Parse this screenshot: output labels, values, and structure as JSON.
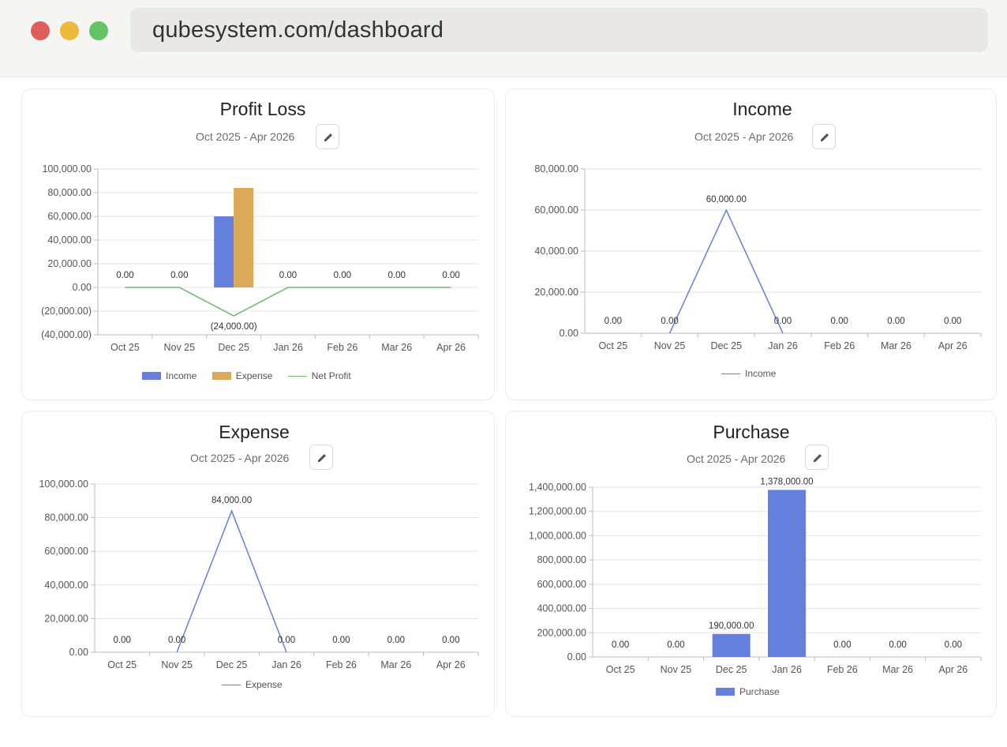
{
  "browser": {
    "url": "qubesystem.com/dashboard"
  },
  "colors": {
    "income": "#6580dc",
    "expense": "#d9a957",
    "net_profit": "#6cb86c",
    "purchase": "#6580dc"
  },
  "cards": {
    "profit_loss": {
      "title": "Profit Loss",
      "period": "Oct 2025 - Apr 2026",
      "edit_icon": "pencil-icon",
      "legend": [
        "Income",
        "Expense",
        "Net Profit"
      ]
    },
    "income": {
      "title": "Income",
      "period": "Oct 2025 - Apr 2026",
      "edit_icon": "pencil-icon",
      "legend": [
        "Income"
      ]
    },
    "expense": {
      "title": "Expense",
      "period": "Oct 2025 - Apr 2026",
      "edit_icon": "pencil-icon",
      "legend": [
        "Expense"
      ]
    },
    "purchase": {
      "title": "Purchase",
      "period": "Oct 2025 - Apr 2026",
      "edit_icon": "pencil-icon",
      "legend": [
        "Purchase"
      ]
    }
  },
  "chart_data": [
    {
      "id": "profit_loss",
      "type": "bar",
      "categories": [
        "Oct 25",
        "Nov 25",
        "Dec 25",
        "Jan 26",
        "Feb 26",
        "Mar 26",
        "Apr 26"
      ],
      "series": [
        {
          "name": "Income",
          "type": "bar",
          "values": [
            0,
            0,
            60000,
            0,
            0,
            0,
            0
          ]
        },
        {
          "name": "Expense",
          "type": "bar",
          "values": [
            0,
            0,
            84000,
            0,
            0,
            0,
            0
          ]
        },
        {
          "name": "Net Profit",
          "type": "line",
          "values": [
            0,
            0,
            -24000,
            0,
            0,
            0,
            0
          ]
        }
      ],
      "data_labels": [
        "0.00",
        "0.00",
        "(24,000.00)",
        "0.00",
        "0.00",
        "0.00",
        "0.00"
      ],
      "yticks": [
        "100,000.00",
        "80,000.00",
        "60,000.00",
        "40,000.00",
        "20,000.00",
        "0.00",
        "(20,000.00)",
        "(40,000.00)"
      ],
      "ylim": [
        -40000,
        100000
      ],
      "grid": true,
      "legend_position": "bottom"
    },
    {
      "id": "income",
      "type": "line",
      "categories": [
        "Oct 25",
        "Nov 25",
        "Dec 25",
        "Jan 26",
        "Feb 26",
        "Mar 26",
        "Apr 26"
      ],
      "series": [
        {
          "name": "Income",
          "values": [
            0,
            0,
            60000,
            0,
            0,
            0,
            0
          ]
        }
      ],
      "data_labels": [
        "0.00",
        "0.00",
        "60,000.00",
        "0.00",
        "0.00",
        "0.00",
        "0.00"
      ],
      "yticks": [
        "80,000.00",
        "60,000.00",
        "40,000.00",
        "20,000.00",
        "0.00"
      ],
      "ylim": [
        0,
        80000
      ],
      "grid": true,
      "legend_position": "bottom"
    },
    {
      "id": "expense",
      "type": "line",
      "categories": [
        "Oct 25",
        "Nov 25",
        "Dec 25",
        "Jan 26",
        "Feb 26",
        "Mar 26",
        "Apr 26"
      ],
      "series": [
        {
          "name": "Expense",
          "values": [
            0,
            0,
            84000,
            0,
            0,
            0,
            0
          ]
        }
      ],
      "data_labels": [
        "0.00",
        "0.00",
        "84,000.00",
        "0.00",
        "0.00",
        "0.00",
        "0.00"
      ],
      "yticks": [
        "100,000.00",
        "80,000.00",
        "60,000.00",
        "40,000.00",
        "20,000.00",
        "0.00"
      ],
      "ylim": [
        0,
        100000
      ],
      "grid": true,
      "legend_position": "bottom"
    },
    {
      "id": "purchase",
      "type": "bar",
      "categories": [
        "Oct 25",
        "Nov 25",
        "Dec 25",
        "Jan 26",
        "Feb 26",
        "Mar 26",
        "Apr 26"
      ],
      "series": [
        {
          "name": "Purchase",
          "values": [
            0,
            0,
            190000,
            1378000,
            0,
            0,
            0
          ]
        }
      ],
      "data_labels": [
        "0.00",
        "0.00",
        "190,000.00",
        "1,378,000.00",
        "0.00",
        "0.00",
        "0.00"
      ],
      "yticks": [
        "1,400,000.00",
        "1,200,000.00",
        "1,000,000.00",
        "800,000.00",
        "600,000.00",
        "400,000.00",
        "200,000.00",
        "0.00"
      ],
      "ylim": [
        0,
        1400000
      ],
      "grid": true,
      "legend_position": "bottom"
    }
  ]
}
